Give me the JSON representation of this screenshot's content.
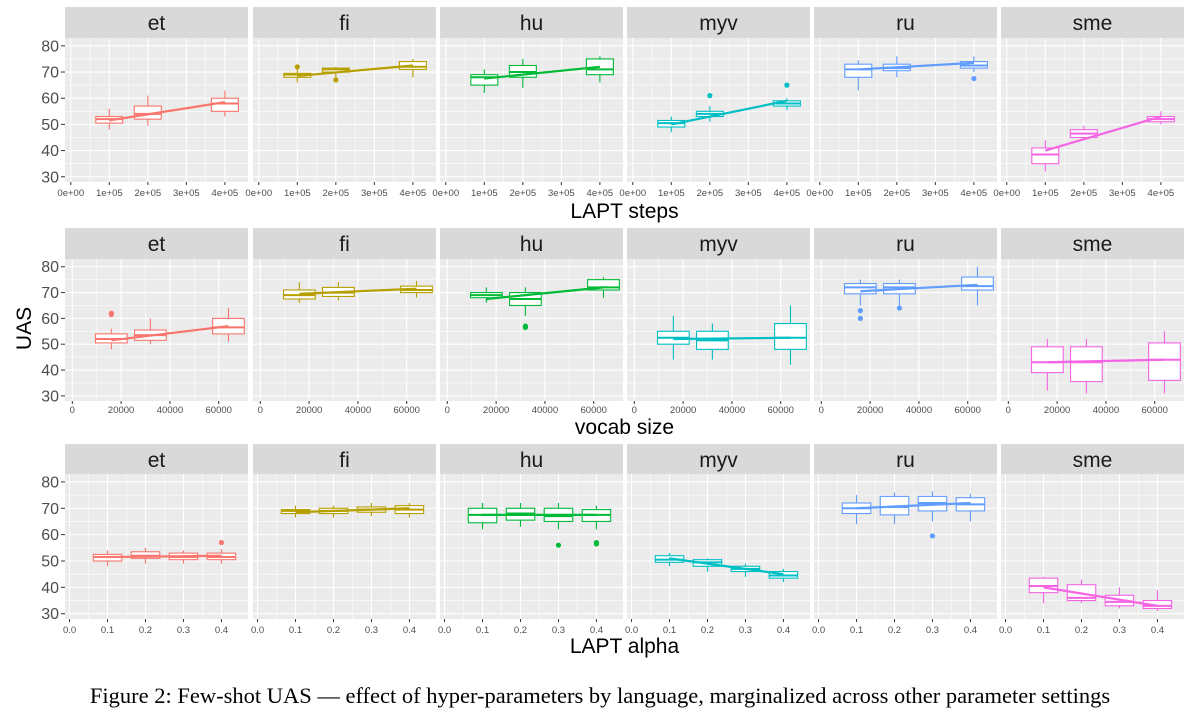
{
  "caption": "Figure 2: Few-shot UAS — effect of hyper-parameters by language, marginalized across other parameter settings",
  "chart_data": {
    "type": "box",
    "ylabel": "UAS",
    "ylim": [
      28,
      83
    ],
    "yticks": [
      30,
      40,
      50,
      60,
      70,
      80
    ],
    "languages": [
      "et",
      "fi",
      "hu",
      "myv",
      "ru",
      "sme"
    ],
    "colors": {
      "et": "#F8766D",
      "fi": "#B79F00",
      "hu": "#00BA38",
      "myv": "#00BFC4",
      "ru": "#619CFF",
      "sme": "#F564E3"
    },
    "rows": [
      {
        "xlabel": "LAPT steps",
        "xlim": [
          -15000,
          460000
        ],
        "xticks": [
          0,
          100000,
          200000,
          300000,
          400000
        ],
        "xtick_labels": [
          "0e+00",
          "1e+05",
          "2e+05",
          "3e+05",
          "4e+05"
        ],
        "box_width": 70000,
        "panels": {
          "et": {
            "boxes": [
              {
                "x": 100000,
                "q1": 50.5,
                "median": 52,
                "q3": 53,
                "lo": 48,
                "hi": 56,
                "outliers": []
              },
              {
                "x": 200000,
                "q1": 52,
                "median": 54,
                "q3": 57,
                "lo": 49.5,
                "hi": 61,
                "outliers": []
              },
              {
                "x": 400000,
                "q1": 55,
                "median": 58,
                "q3": 60,
                "lo": 53,
                "hi": 63,
                "outliers": []
              }
            ],
            "trend": [
              51.5,
              58.5
            ]
          },
          "fi": {
            "boxes": [
              {
                "x": 100000,
                "q1": 68,
                "median": 69,
                "q3": 69.5,
                "lo": 66,
                "hi": 72,
                "outliers": [
                  72
                ]
              },
              {
                "x": 200000,
                "q1": 70,
                "median": 71,
                "q3": 71.5,
                "lo": 68,
                "hi": 72,
                "outliers": [
                  67
                ]
              },
              {
                "x": 400000,
                "q1": 71,
                "median": 72,
                "q3": 74,
                "lo": 68,
                "hi": 75,
                "outliers": []
              }
            ],
            "trend": [
              68.5,
              72.5
            ]
          },
          "hu": {
            "boxes": [
              {
                "x": 100000,
                "q1": 65,
                "median": 68,
                "q3": 69,
                "lo": 62,
                "hi": 71,
                "outliers": []
              },
              {
                "x": 200000,
                "q1": 68,
                "median": 70,
                "q3": 72.5,
                "lo": 64,
                "hi": 75,
                "outliers": []
              },
              {
                "x": 400000,
                "q1": 69,
                "median": 71,
                "q3": 75,
                "lo": 66,
                "hi": 76,
                "outliers": []
              }
            ],
            "trend": [
              67.5,
              72
            ]
          },
          "myv": {
            "boxes": [
              {
                "x": 100000,
                "q1": 49,
                "median": 50.5,
                "q3": 51.5,
                "lo": 47,
                "hi": 53,
                "outliers": []
              },
              {
                "x": 200000,
                "q1": 53,
                "median": 54,
                "q3": 55,
                "lo": 51,
                "hi": 57,
                "outliers": [
                  61
                ]
              },
              {
                "x": 400000,
                "q1": 57,
                "median": 58,
                "q3": 59,
                "lo": 55.5,
                "hi": 60,
                "outliers": [
                  65
                ]
              }
            ],
            "trend": [
              50,
              59
            ]
          },
          "ru": {
            "boxes": [
              {
                "x": 100000,
                "q1": 68,
                "median": 71,
                "q3": 73,
                "lo": 63,
                "hi": 74.5,
                "outliers": []
              },
              {
                "x": 200000,
                "q1": 70.5,
                "median": 71.5,
                "q3": 73,
                "lo": 68,
                "hi": 76,
                "outliers": []
              },
              {
                "x": 400000,
                "q1": 71.5,
                "median": 72.5,
                "q3": 74,
                "lo": 70,
                "hi": 76,
                "outliers": [
                  67.5
                ]
              }
            ],
            "trend": [
              71,
              73.5
            ]
          },
          "sme": {
            "boxes": [
              {
                "x": 100000,
                "q1": 35,
                "median": 38.5,
                "q3": 41,
                "lo": 32,
                "hi": 44,
                "outliers": []
              },
              {
                "x": 200000,
                "q1": 45,
                "median": 46.5,
                "q3": 48,
                "lo": 44,
                "hi": 49.5,
                "outliers": []
              },
              {
                "x": 400000,
                "q1": 51,
                "median": 52,
                "q3": 53,
                "lo": 50,
                "hi": 55,
                "outliers": []
              }
            ],
            "trend": [
              40,
              53
            ]
          }
        }
      },
      {
        "xlabel": "vocab size",
        "xlim": [
          -3000,
          72000
        ],
        "xticks": [
          0,
          20000,
          40000,
          60000
        ],
        "xtick_labels": [
          "0",
          "20000",
          "40000",
          "60000"
        ],
        "box_width": 13000,
        "panels": {
          "et": {
            "boxes": [
              {
                "x": 16000,
                "q1": 50.5,
                "median": 52,
                "q3": 54,
                "lo": 48,
                "hi": 56,
                "outliers": [
                  61.5,
                  62
                ]
              },
              {
                "x": 32000,
                "q1": 51.5,
                "median": 53.5,
                "q3": 55.5,
                "lo": 50,
                "hi": 60,
                "outliers": []
              },
              {
                "x": 64000,
                "q1": 54,
                "median": 56.5,
                "q3": 60,
                "lo": 51,
                "hi": 64,
                "outliers": []
              }
            ],
            "trend": [
              51.5,
              57
            ]
          },
          "fi": {
            "boxes": [
              {
                "x": 16000,
                "q1": 67.5,
                "median": 69,
                "q3": 71,
                "lo": 66,
                "hi": 74,
                "outliers": []
              },
              {
                "x": 32000,
                "q1": 68.5,
                "median": 70,
                "q3": 72,
                "lo": 67,
                "hi": 74,
                "outliers": []
              },
              {
                "x": 64000,
                "q1": 70,
                "median": 71,
                "q3": 72.5,
                "lo": 68,
                "hi": 74.5,
                "outliers": []
              }
            ],
            "trend": [
              69.5,
              71.5
            ]
          },
          "hu": {
            "boxes": [
              {
                "x": 16000,
                "q1": 68,
                "median": 69,
                "q3": 70,
                "lo": 66,
                "hi": 72,
                "outliers": []
              },
              {
                "x": 32000,
                "q1": 65,
                "median": 67.5,
                "q3": 70,
                "lo": 61,
                "hi": 72,
                "outliers": [
                  56.5,
                  57
                ]
              },
              {
                "x": 64000,
                "q1": 71,
                "median": 72,
                "q3": 75,
                "lo": 68,
                "hi": 76,
                "outliers": []
              }
            ],
            "trend": [
              67.5,
              72
            ]
          },
          "myv": {
            "boxes": [
              {
                "x": 16000,
                "q1": 50,
                "median": 52.5,
                "q3": 55,
                "lo": 44,
                "hi": 61,
                "outliers": []
              },
              {
                "x": 32000,
                "q1": 48,
                "median": 51.5,
                "q3": 55,
                "lo": 44,
                "hi": 58,
                "outliers": []
              },
              {
                "x": 64000,
                "q1": 48,
                "median": 52.5,
                "q3": 58,
                "lo": 42,
                "hi": 65,
                "outliers": []
              }
            ],
            "trend": [
              52,
              52.5
            ]
          },
          "ru": {
            "boxes": [
              {
                "x": 16000,
                "q1": 69.5,
                "median": 72,
                "q3": 73.5,
                "lo": 65,
                "hi": 75,
                "outliers": [
                  63,
                  60
                ]
              },
              {
                "x": 32000,
                "q1": 69.5,
                "median": 72,
                "q3": 73.5,
                "lo": 65,
                "hi": 75,
                "outliers": [
                  64
                ]
              },
              {
                "x": 64000,
                "q1": 71,
                "median": 72.5,
                "q3": 76,
                "lo": 65,
                "hi": 80,
                "outliers": []
              }
            ],
            "trend": [
              70.5,
              73
            ]
          },
          "sme": {
            "boxes": [
              {
                "x": 16000,
                "q1": 39,
                "median": 43,
                "q3": 49,
                "lo": 32,
                "hi": 52,
                "outliers": []
              },
              {
                "x": 32000,
                "q1": 35.5,
                "median": 43,
                "q3": 49,
                "lo": 31,
                "hi": 52,
                "outliers": []
              },
              {
                "x": 64000,
                "q1": 36,
                "median": 44,
                "q3": 50.5,
                "lo": 31,
                "hi": 55,
                "outliers": []
              }
            ],
            "trend": [
              43,
              44
            ]
          }
        }
      },
      {
        "xlabel": "LAPT alpha",
        "xlim": [
          -0.012,
          0.47
        ],
        "xticks": [
          0,
          0.1,
          0.2,
          0.3,
          0.4
        ],
        "xtick_labels": [
          "0.0",
          "0.1",
          "0.2",
          "0.3",
          "0.4"
        ],
        "box_width": 0.075,
        "panels": {
          "et": {
            "boxes": [
              {
                "x": 0.1,
                "q1": 50,
                "median": 51.5,
                "q3": 52.5,
                "lo": 48,
                "hi": 54,
                "outliers": []
              },
              {
                "x": 0.2,
                "q1": 51,
                "median": 52,
                "q3": 53.5,
                "lo": 49,
                "hi": 55,
                "outliers": []
              },
              {
                "x": 0.3,
                "q1": 50.5,
                "median": 51.5,
                "q3": 53,
                "lo": 49,
                "hi": 54,
                "outliers": []
              },
              {
                "x": 0.4,
                "q1": 50.5,
                "median": 51.5,
                "q3": 53,
                "lo": 49,
                "hi": 54.5,
                "outliers": [
                  57
                ]
              }
            ],
            "trend": [
              51.5,
              52
            ]
          },
          "fi": {
            "boxes": [
              {
                "x": 0.1,
                "q1": 68,
                "median": 69,
                "q3": 69.5,
                "lo": 66.5,
                "hi": 71,
                "outliers": []
              },
              {
                "x": 0.2,
                "q1": 68,
                "median": 69,
                "q3": 70,
                "lo": 66.5,
                "hi": 71,
                "outliers": []
              },
              {
                "x": 0.3,
                "q1": 68.5,
                "median": 69.5,
                "q3": 70.5,
                "lo": 67,
                "hi": 72,
                "outliers": []
              },
              {
                "x": 0.4,
                "q1": 68,
                "median": 69.5,
                "q3": 71,
                "lo": 66.5,
                "hi": 72,
                "outliers": []
              }
            ],
            "trend": [
              68.5,
              70
            ]
          },
          "hu": {
            "boxes": [
              {
                "x": 0.1,
                "q1": 64.5,
                "median": 67.5,
                "q3": 70,
                "lo": 62,
                "hi": 72,
                "outliers": []
              },
              {
                "x": 0.2,
                "q1": 65.5,
                "median": 68,
                "q3": 70,
                "lo": 63,
                "hi": 72,
                "outliers": []
              },
              {
                "x": 0.3,
                "q1": 65,
                "median": 67,
                "q3": 70,
                "lo": 62,
                "hi": 72,
                "outliers": [
                  56
                ]
              },
              {
                "x": 0.4,
                "q1": 65,
                "median": 67.5,
                "q3": 69.5,
                "lo": 62,
                "hi": 71,
                "outliers": [
                  57,
                  56.5
                ]
              }
            ],
            "trend": [
              67.5,
              67.5
            ]
          },
          "myv": {
            "boxes": [
              {
                "x": 0.1,
                "q1": 49.5,
                "median": 50.5,
                "q3": 52,
                "lo": 48,
                "hi": 53,
                "outliers": []
              },
              {
                "x": 0.2,
                "q1": 48,
                "median": 49.5,
                "q3": 50.5,
                "lo": 46,
                "hi": 51,
                "outliers": []
              },
              {
                "x": 0.3,
                "q1": 46,
                "median": 47,
                "q3": 48,
                "lo": 44,
                "hi": 49,
                "outliers": []
              },
              {
                "x": 0.4,
                "q1": 43.5,
                "median": 44.5,
                "q3": 46,
                "lo": 42,
                "hi": 47,
                "outliers": []
              }
            ],
            "trend": [
              51,
              45
            ]
          },
          "ru": {
            "boxes": [
              {
                "x": 0.1,
                "q1": 68,
                "median": 70,
                "q3": 72,
                "lo": 64,
                "hi": 75,
                "outliers": []
              },
              {
                "x": 0.2,
                "q1": 67.5,
                "median": 70.5,
                "q3": 74.5,
                "lo": 64,
                "hi": 76,
                "outliers": []
              },
              {
                "x": 0.3,
                "q1": 69,
                "median": 72,
                "q3": 74.5,
                "lo": 65,
                "hi": 76.5,
                "outliers": [
                  59.5
                ]
              },
              {
                "x": 0.4,
                "q1": 69,
                "median": 71.5,
                "q3": 74,
                "lo": 65,
                "hi": 75.5,
                "outliers": []
              }
            ],
            "trend": [
              70,
              72
            ]
          },
          "sme": {
            "boxes": [
              {
                "x": 0.1,
                "q1": 38,
                "median": 40.5,
                "q3": 43.5,
                "lo": 34,
                "hi": 44,
                "outliers": []
              },
              {
                "x": 0.2,
                "q1": 35,
                "median": 36,
                "q3": 41,
                "lo": 34,
                "hi": 43,
                "outliers": []
              },
              {
                "x": 0.3,
                "q1": 33,
                "median": 34.5,
                "q3": 37,
                "lo": 32,
                "hi": 40,
                "outliers": []
              },
              {
                "x": 0.4,
                "q1": 32,
                "median": 33,
                "q3": 35,
                "lo": 31,
                "hi": 39,
                "outliers": []
              }
            ],
            "trend": [
              40,
              33
            ]
          }
        }
      }
    ]
  }
}
